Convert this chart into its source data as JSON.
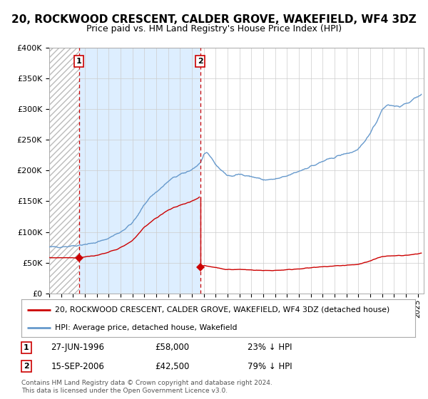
{
  "title": "20, ROCKWOOD CRESCENT, CALDER GROVE, WAKEFIELD, WF4 3DZ",
  "subtitle": "Price paid vs. HM Land Registry's House Price Index (HPI)",
  "footnote": "Contains HM Land Registry data © Crown copyright and database right 2024.\nThis data is licensed under the Open Government Licence v3.0.",
  "legend_line1": "20, ROCKWOOD CRESCENT, CALDER GROVE, WAKEFIELD, WF4 3DZ (detached house)",
  "legend_line2": "HPI: Average price, detached house, Wakefield",
  "sale1_date": "27-JUN-1996",
  "sale1_price": "£58,000",
  "sale1_hpi": "23% ↓ HPI",
  "sale2_date": "15-SEP-2006",
  "sale2_price": "£42,500",
  "sale2_hpi": "79% ↓ HPI",
  "sale1_x": 1996.49,
  "sale1_y": 58000,
  "sale2_x": 2006.71,
  "sale2_y": 42500,
  "ylim": [
    0,
    400000
  ],
  "xlim": [
    1994.0,
    2025.5
  ],
  "background_color": "#ffffff",
  "shaded_region_color": "#ddeeff",
  "hpi_color": "#6699cc",
  "sale_color": "#cc0000",
  "vline_color": "#cc0000",
  "grid_color": "#cccccc",
  "title_fontsize": 11,
  "subtitle_fontsize": 9
}
